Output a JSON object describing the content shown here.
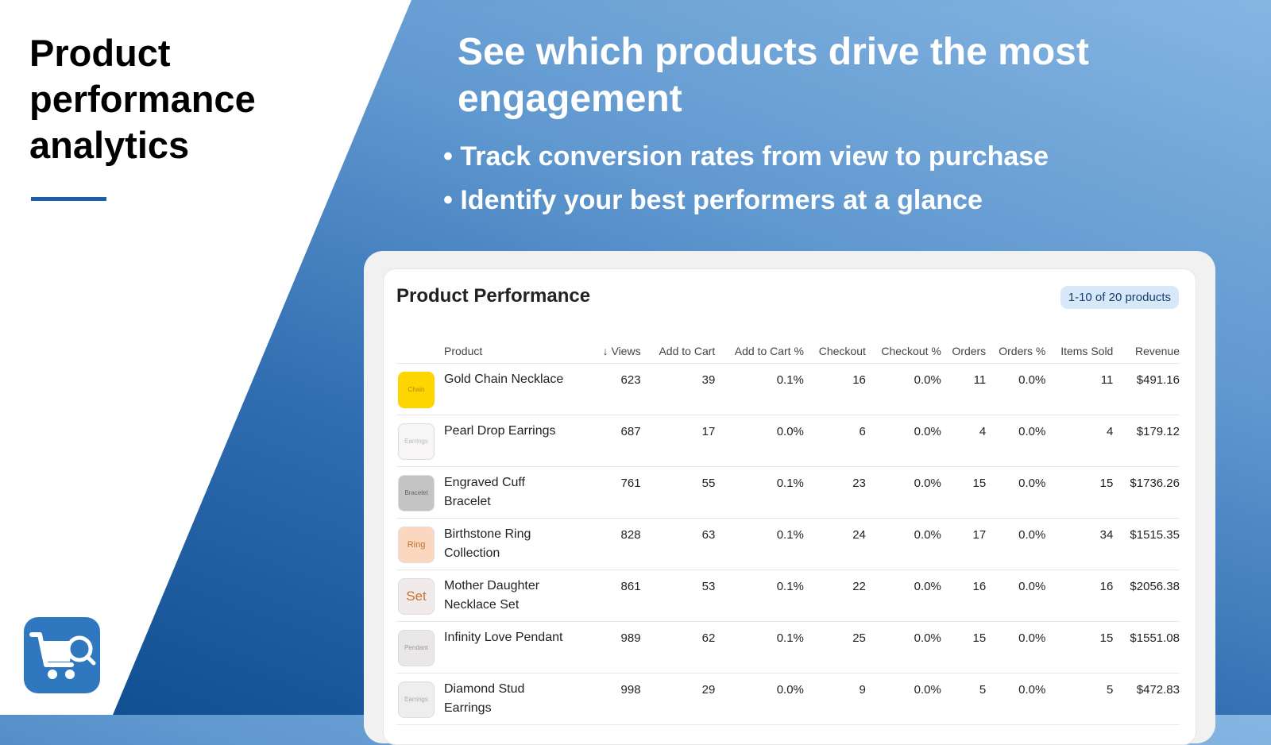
{
  "left": {
    "title": "Product performance analytics",
    "icon": "cart-search-icon",
    "accent": "#1a5fa8"
  },
  "hero": {
    "headline": "See which products drive the most engagement",
    "bullets": [
      "• Track conversion rates from view to purchase",
      "• Identify your best performers at a glance"
    ]
  },
  "card": {
    "title": "Product Performance",
    "badge": "1-10 of 20 products",
    "columns": [
      "Product",
      "Views",
      "Add to Cart",
      "Add to Cart %",
      "Checkout",
      "Checkout %",
      "Orders",
      "Orders %",
      "Items Sold",
      "Revenue"
    ],
    "sort_icon": "arrow-down-icon",
    "rows": [
      {
        "thumb": "Chain",
        "thumb_bg": "#fdd500",
        "thumb_fg": "#b8860b",
        "name": "Gold Chain Necklace",
        "values": [
          "623",
          "39",
          "0.1%",
          "16",
          "0.0%",
          "11",
          "0.0%",
          "11",
          "$491.16"
        ]
      },
      {
        "thumb": "Earrings",
        "thumb_bg": "#f7f5f5",
        "thumb_fg": "#bbbbbb",
        "name": "Pearl Drop Earrings",
        "values": [
          "687",
          "17",
          "0.0%",
          "6",
          "0.0%",
          "4",
          "0.0%",
          "4",
          "$179.12"
        ]
      },
      {
        "thumb": "Bracelet",
        "thumb_bg": "#c4c4c4",
        "thumb_fg": "#666666",
        "name": "Engraved Cuff Bracelet",
        "values": [
          "761",
          "55",
          "0.1%",
          "23",
          "0.0%",
          "15",
          "0.0%",
          "15",
          "$1736.26"
        ]
      },
      {
        "thumb": "Ring",
        "thumb_bg": "#fbd7c0",
        "thumb_fg": "#c0702a",
        "name": "Birthstone Ring Collection",
        "values": [
          "828",
          "63",
          "0.1%",
          "24",
          "0.0%",
          "17",
          "0.0%",
          "34",
          "$1515.35"
        ]
      },
      {
        "thumb": "Set",
        "thumb_bg": "#f0eaea",
        "thumb_fg": "#c8732a",
        "name": "Mother Daughter Necklace Set",
        "values": [
          "861",
          "53",
          "0.1%",
          "22",
          "0.0%",
          "16",
          "0.0%",
          "16",
          "$2056.38"
        ]
      },
      {
        "thumb": "Pendant",
        "thumb_bg": "#e9e7e7",
        "thumb_fg": "#999999",
        "name": "Infinity Love Pendant",
        "values": [
          "989",
          "62",
          "0.1%",
          "25",
          "0.0%",
          "15",
          "0.0%",
          "15",
          "$1551.08"
        ]
      },
      {
        "thumb": "Earrings",
        "thumb_bg": "#efeeee",
        "thumb_fg": "#aaaaaa",
        "name": "Diamond Stud Earrings",
        "values": [
          "998",
          "29",
          "0.0%",
          "9",
          "0.0%",
          "5",
          "0.0%",
          "5",
          "$472.83"
        ]
      }
    ]
  }
}
